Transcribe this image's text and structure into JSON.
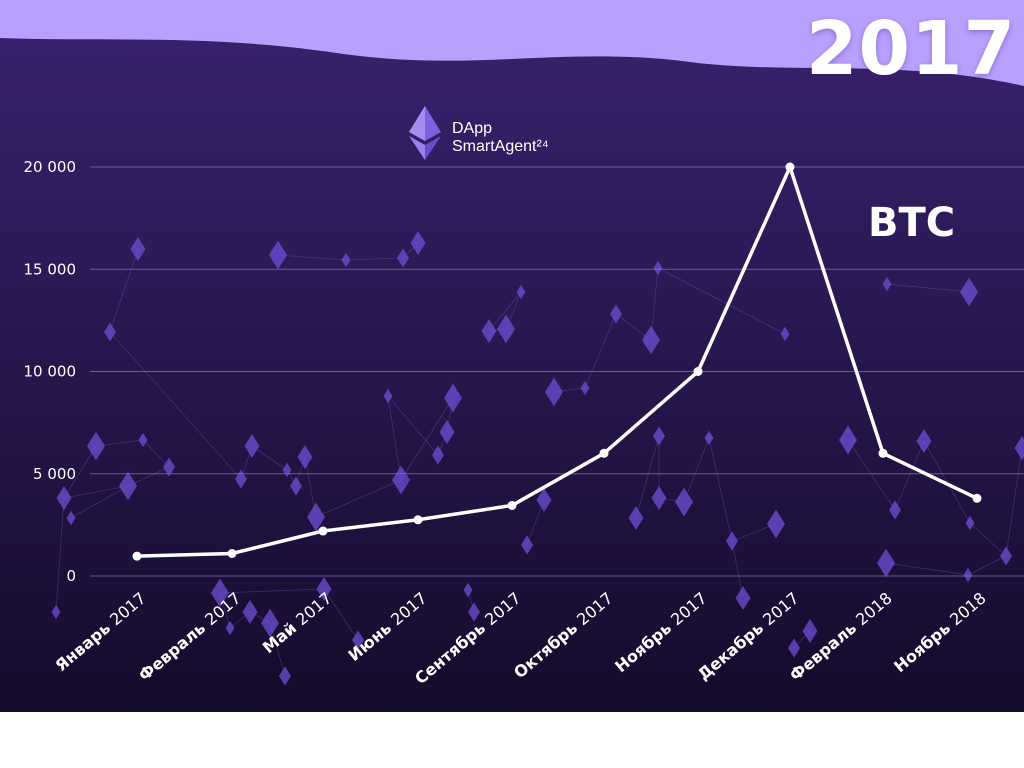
{
  "header": {
    "year": "2017"
  },
  "logo": {
    "line1": "DApp",
    "line2": "SmartAgent²⁴",
    "icon": "ethereum-diamond-icon"
  },
  "colors": {
    "top_band": "#b9a0ff",
    "bg_top": "#3a2270",
    "bg_bottom": "#150b2b",
    "line": "#ffffff",
    "grid": "#8a78c0",
    "diamond": "#6e4fd6"
  },
  "chart_data": {
    "type": "line",
    "series": [
      {
        "name": "BTC",
        "values": [
          970,
          1100,
          2200,
          2750,
          3450,
          6000,
          10000,
          20000,
          6000,
          3800
        ]
      }
    ],
    "categories": [
      "Январь 2017",
      "Февраль 2017",
      "Май 2017",
      "Июнь 2017",
      "Сентябрь 2017",
      "Октябрь 2017",
      "Ноябрь 2017",
      "Декабрь 2017",
      "Февраль 2018",
      "Ноябрь 2018"
    ],
    "category_parts": [
      [
        "Январь",
        "2017"
      ],
      [
        "Февраль",
        "2017"
      ],
      [
        "Май",
        "2017"
      ],
      [
        "Июнь",
        "2017"
      ],
      [
        "Сентябрь",
        "2017"
      ],
      [
        "Октябрь",
        "2017"
      ],
      [
        "Ноябрь",
        "2017"
      ],
      [
        "Декабрь",
        "2017"
      ],
      [
        "Февраль",
        "2018"
      ],
      [
        "Ноябрь",
        "2018"
      ]
    ],
    "y_ticks": [
      {
        "value": 0,
        "label": "0"
      },
      {
        "value": 5000,
        "label": "5 000"
      },
      {
        "value": 10000,
        "label": "10 000"
      },
      {
        "value": 15000,
        "label": "15 000"
      },
      {
        "value": 20000,
        "label": "20 000"
      }
    ],
    "ylim": [
      0,
      20000
    ],
    "grid": true,
    "legend": "none"
  }
}
